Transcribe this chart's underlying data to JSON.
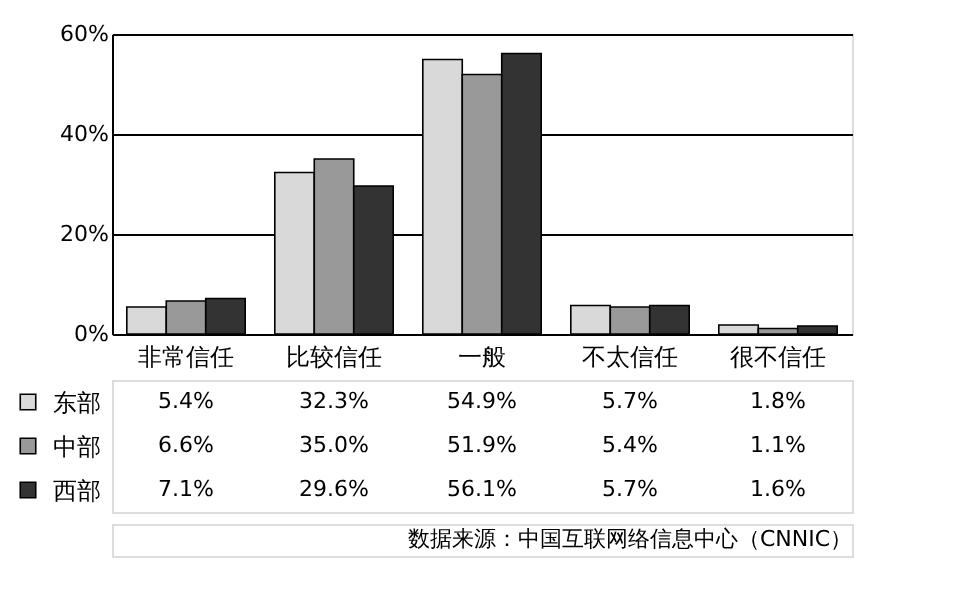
{
  "chart_data": {
    "type": "bar",
    "categories": [
      "非常信任",
      "比较信任",
      "一般",
      "不太信任",
      "很不信任"
    ],
    "series": [
      {
        "name": "东部",
        "color": "#d9d9d9",
        "values": [
          5.4,
          32.3,
          54.9,
          5.7,
          1.8
        ],
        "value_labels": [
          "5.4%",
          "32.3%",
          "54.9%",
          "5.7%",
          "1.8%"
        ]
      },
      {
        "name": "中部",
        "color": "#999999",
        "values": [
          6.6,
          35.0,
          51.9,
          5.4,
          1.1
        ],
        "value_labels": [
          "6.6%",
          "35.0%",
          "51.9%",
          "5.4%",
          "1.1%"
        ]
      },
      {
        "name": "西部",
        "color": "#333333",
        "values": [
          7.1,
          29.6,
          56.1,
          5.7,
          1.6
        ],
        "value_labels": [
          "7.1%",
          "29.6%",
          "56.1%",
          "5.7%",
          "1.6%"
        ]
      }
    ],
    "ylim": [
      0,
      60
    ],
    "yticks": [
      {
        "value": 0,
        "label": "0%"
      },
      {
        "value": 20,
        "label": "20%"
      },
      {
        "value": 40,
        "label": "40%"
      },
      {
        "value": 60,
        "label": "60%"
      }
    ],
    "grid": "y",
    "legend": "bottom",
    "annotations": [
      "数据来源：中国互联网络信息中心（CNNIC）"
    ]
  }
}
